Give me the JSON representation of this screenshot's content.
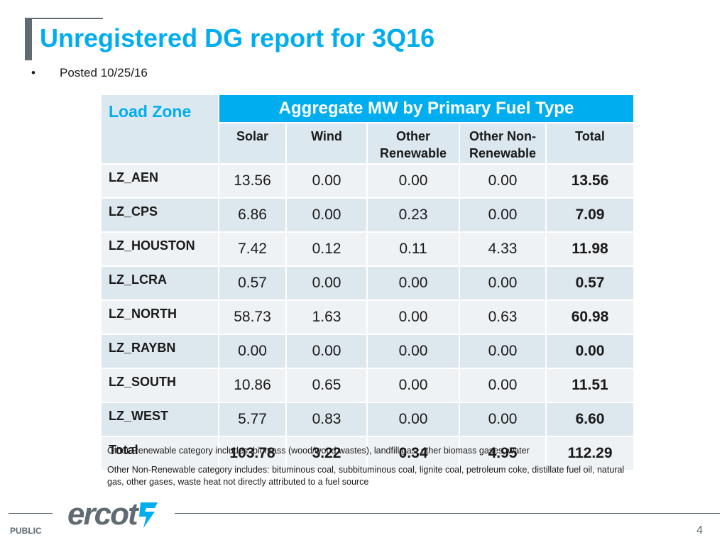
{
  "slide": {
    "title": "Unregistered DG report for 3Q16",
    "bullet": "Posted 10/25/16"
  },
  "table": {
    "zone_header": "Load Zone",
    "group_header": "Aggregate MW by Primary Fuel Type",
    "columns": [
      "Solar",
      "Wind",
      "Other\nRenewable",
      "Other Non-\nRenewable",
      "Total"
    ],
    "rows": [
      {
        "zone": "LZ_AEN",
        "values": [
          "13.56",
          "0.00",
          "0.00",
          "0.00",
          "13.56"
        ]
      },
      {
        "zone": "LZ_CPS",
        "values": [
          "6.86",
          "0.00",
          "0.23",
          "0.00",
          "7.09"
        ]
      },
      {
        "zone": "LZ_HOUSTON",
        "values": [
          "7.42",
          "0.12",
          "0.11",
          "4.33",
          "11.98"
        ]
      },
      {
        "zone": "LZ_LCRA",
        "values": [
          "0.57",
          "0.00",
          "0.00",
          "0.00",
          "0.57"
        ]
      },
      {
        "zone": "LZ_NORTH",
        "values": [
          "58.73",
          "1.63",
          "0.00",
          "0.63",
          "60.98"
        ]
      },
      {
        "zone": "LZ_RAYBN",
        "values": [
          "0.00",
          "0.00",
          "0.00",
          "0.00",
          "0.00"
        ]
      },
      {
        "zone": "LZ_SOUTH",
        "values": [
          "10.86",
          "0.65",
          "0.00",
          "0.00",
          "11.51"
        ]
      },
      {
        "zone": "LZ_WEST",
        "values": [
          "5.77",
          "0.83",
          "0.00",
          "0.00",
          "6.60"
        ]
      },
      {
        "zone": "Total",
        "values": [
          "103.78",
          "3.22",
          "0.34",
          "4.95",
          "112.29"
        ]
      }
    ]
  },
  "notes": [
    "Other Renewable category includes: biomass (wood/wood wastes), landfill gas, other biomass gases, water",
    "Other Non-Renewable category includes: bituminous coal, subbituminous coal, lignite coal, petroleum coke, distillate fuel oil, natural gas, other gases, waste heat not directly attributed to a fuel source"
  ],
  "footer": {
    "logo_text": "ercot",
    "classification": "PUBLIC",
    "page_number": "4"
  },
  "colors": {
    "accent": "#00aeef",
    "header_fill": "#dce8ef",
    "gray": "#5f6a72"
  },
  "icons": [
    "ercot-logo-mark-icon"
  ]
}
